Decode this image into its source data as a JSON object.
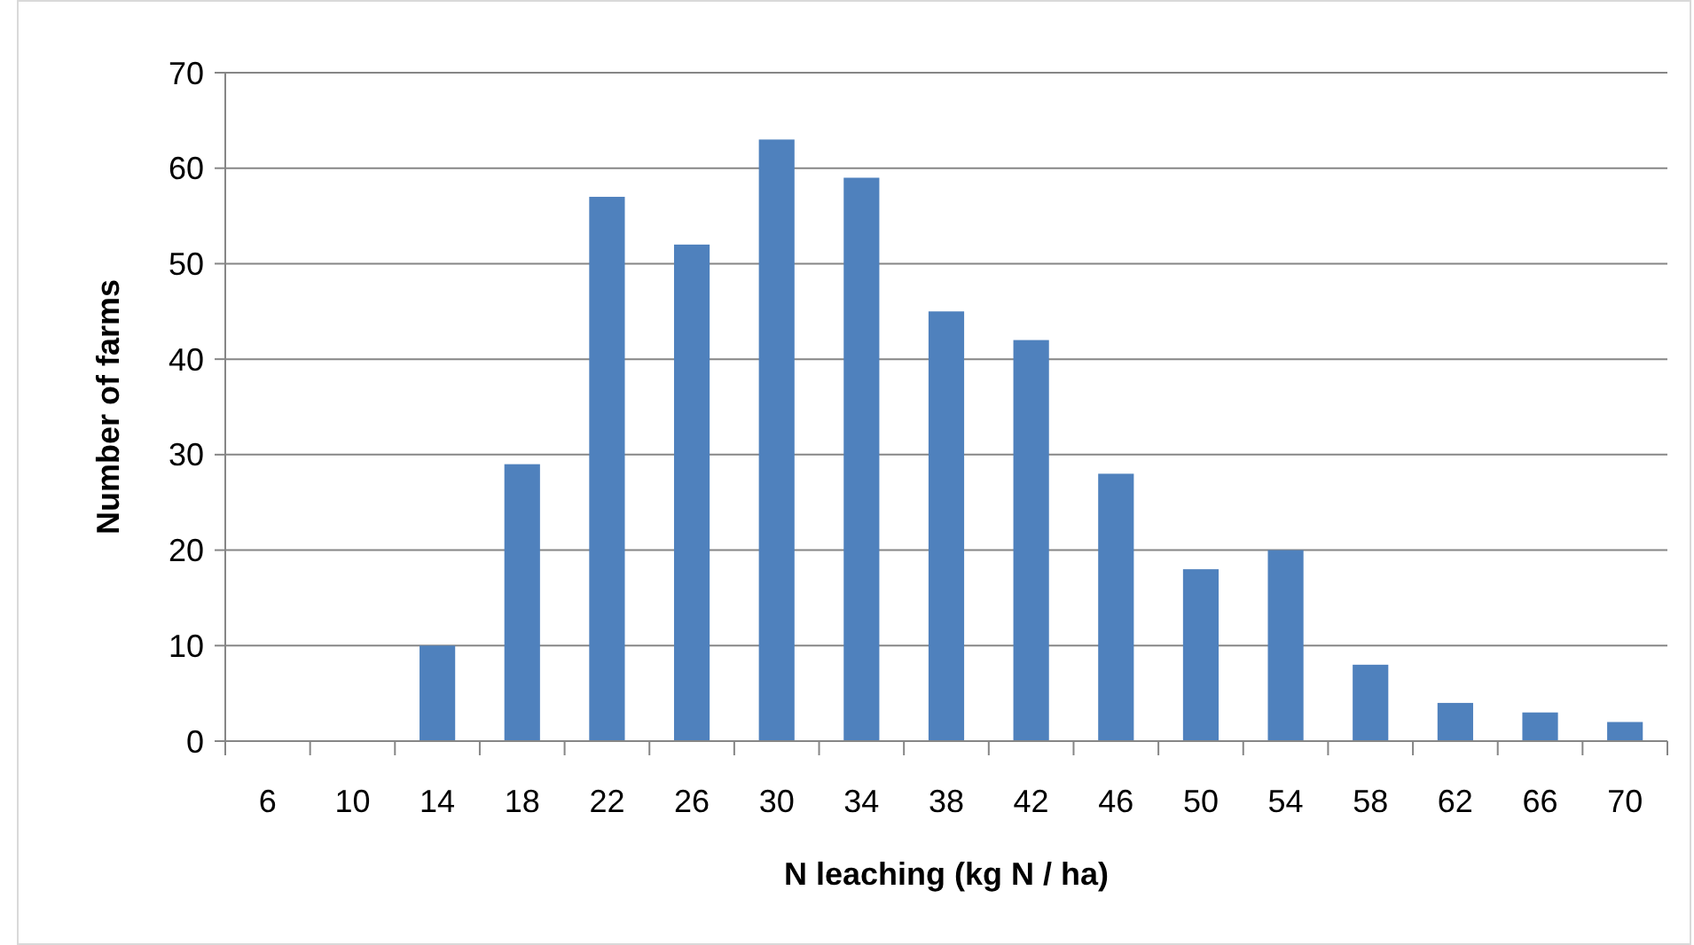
{
  "chart_data": {
    "type": "bar",
    "xlabel": "N leaching (kg N / ha)",
    "ylabel": "Number of farms",
    "categories": [
      "6",
      "10",
      "14",
      "18",
      "22",
      "26",
      "30",
      "34",
      "38",
      "42",
      "46",
      "50",
      "54",
      "58",
      "62",
      "66",
      "70"
    ],
    "values": [
      0,
      0,
      10,
      29,
      57,
      52,
      63,
      59,
      45,
      42,
      28,
      18,
      20,
      8,
      4,
      3,
      2
    ],
    "color": "#4f81bd",
    "ylim": [
      0,
      70
    ],
    "yticks": [
      0,
      10,
      20,
      30,
      40,
      50,
      60,
      70
    ],
    "grid": "y"
  }
}
